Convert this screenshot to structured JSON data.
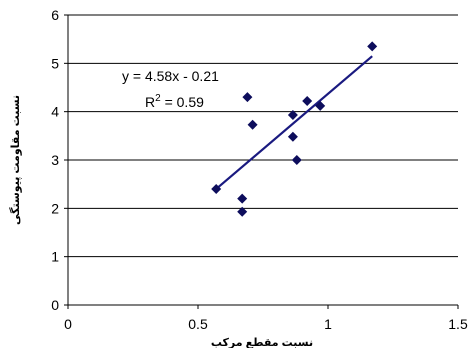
{
  "chart_data": {
    "type": "scatter",
    "xlabel": "نسبت مقطع مرکب",
    "ylabel": "نسبت مقاومت پیوستگی",
    "xlim": [
      0,
      1.5
    ],
    "ylim": [
      0,
      6
    ],
    "x_ticks": [
      "0",
      "0.5",
      "1",
      "1.5"
    ],
    "y_ticks": [
      "0",
      "1",
      "2",
      "3",
      "4",
      "5",
      "6"
    ],
    "grid": "horizontal",
    "points": [
      {
        "x": 0.57,
        "y": 2.4
      },
      {
        "x": 0.67,
        "y": 2.2
      },
      {
        "x": 0.67,
        "y": 1.93
      },
      {
        "x": 0.69,
        "y": 4.3
      },
      {
        "x": 0.71,
        "y": 3.73
      },
      {
        "x": 0.865,
        "y": 3.93
      },
      {
        "x": 0.865,
        "y": 3.48
      },
      {
        "x": 0.88,
        "y": 3.0
      },
      {
        "x": 0.92,
        "y": 4.22
      },
      {
        "x": 0.97,
        "y": 4.12
      },
      {
        "x": 1.17,
        "y": 5.35
      }
    ],
    "trendline": {
      "slope": 4.58,
      "intercept": -0.21,
      "x_range": [
        0.57,
        1.17
      ],
      "equation": "y = 4.58x - 0.21",
      "r2_prefix": "R",
      "r2_exp": "2",
      "r2_suffix": " = 0.59"
    },
    "colors": {
      "marker": "#0d0d5c",
      "trendline": "#1a1a80",
      "grid": "#000000",
      "axis": "#000000"
    }
  }
}
